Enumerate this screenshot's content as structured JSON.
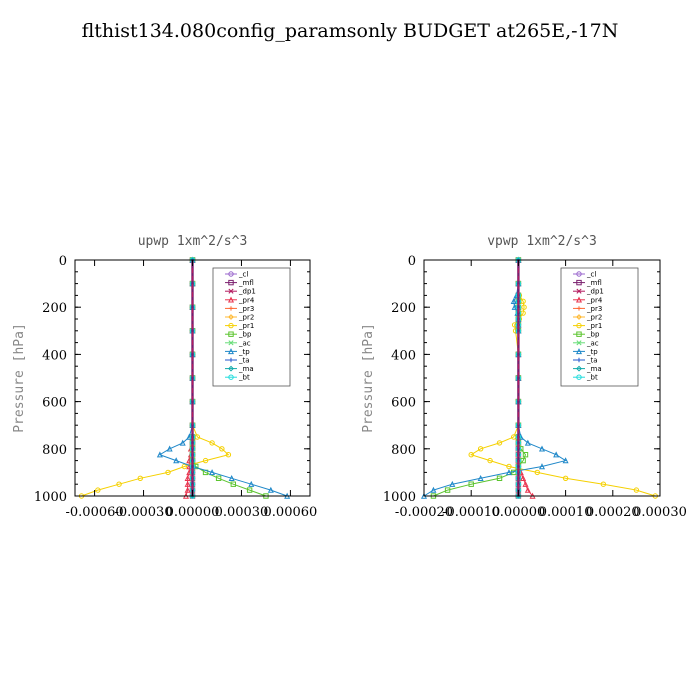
{
  "title": "flthist134.080config_paramsonly  BUDGET at265E,-17N",
  "chart_data": [
    {
      "type": "line",
      "title": "upwp   1xm^2/s^3",
      "ylabel": "Pressure [hPa]",
      "xlim": [
        -0.00072,
        0.00072
      ],
      "ylim": [
        0,
        1000
      ],
      "y_inverted": true,
      "xticks": [
        -0.0006,
        -0.0003,
        0.0,
        0.0003,
        0.0006
      ],
      "xtick_labels": [
        "-0.00060",
        "-0.00030",
        "0.00000",
        "0.00030",
        "0.00060"
      ],
      "yticks": [
        0,
        200,
        400,
        600,
        800,
        1000
      ],
      "y": [
        0,
        100,
        200,
        300,
        400,
        500,
        600,
        700,
        750,
        775,
        800,
        825,
        850,
        875,
        900,
        925,
        950,
        975,
        1000
      ],
      "legend_position": "top-right",
      "series": [
        {
          "name": "_cl",
          "color": "#9966cc",
          "x": [
            0,
            0,
            0,
            0,
            0,
            0,
            0,
            0,
            0,
            0,
            0,
            0,
            0,
            0,
            0,
            0,
            0,
            0,
            0
          ]
        },
        {
          "name": "_mfl",
          "color": "#7a1f6e",
          "x": [
            0,
            0,
            0,
            0,
            0,
            0,
            0,
            0,
            0,
            0,
            0,
            0,
            0,
            0,
            0,
            0,
            0,
            0,
            0
          ]
        },
        {
          "name": "_dp1",
          "color": "#b3195e",
          "x": [
            0,
            0,
            0,
            0,
            0,
            0,
            0,
            0,
            0,
            0,
            0,
            0,
            0,
            0,
            0,
            0,
            0,
            0,
            0
          ]
        },
        {
          "name": "_pr4",
          "color": "#e8344f",
          "x": [
            0,
            0,
            0,
            0,
            0,
            0,
            0,
            0,
            0,
            0,
            -1e-05,
            -1e-05,
            -2e-05,
            -2e-05,
            -2e-05,
            -3e-05,
            -3e-05,
            -3e-05,
            -4e-05
          ]
        },
        {
          "name": "_pr3",
          "color": "#ff6633",
          "x": [
            0,
            0,
            0,
            0,
            0,
            0,
            0,
            0,
            0,
            0,
            0,
            0,
            0,
            0,
            0,
            0,
            0,
            0,
            0
          ]
        },
        {
          "name": "_pr2",
          "color": "#ffb830",
          "x": [
            0,
            0,
            0,
            0,
            0,
            0,
            0,
            0,
            0,
            0,
            0,
            0,
            0,
            0,
            0,
            0,
            0,
            0,
            0
          ]
        },
        {
          "name": "_pr1",
          "color": "#f5d000",
          "x": [
            0,
            0,
            0,
            0,
            0,
            0,
            0,
            0,
            3e-05,
            0.00012,
            0.00018,
            0.00022,
            8e-05,
            -5e-05,
            -0.00015,
            -0.00032,
            -0.00045,
            -0.00058,
            -0.00068
          ]
        },
        {
          "name": "_bp",
          "color": "#5cc42f",
          "x": [
            0,
            0,
            0,
            0,
            0,
            0,
            0,
            0,
            0,
            0,
            0,
            0,
            0,
            2e-05,
            8e-05,
            0.00016,
            0.00025,
            0.00035,
            0.00045
          ]
        },
        {
          "name": "_ac",
          "color": "#66dd77",
          "x": [
            0,
            0,
            0,
            0,
            0,
            0,
            0,
            0,
            0,
            0,
            0,
            0,
            0,
            0,
            0,
            0,
            0,
            0,
            0
          ]
        },
        {
          "name": "_tp",
          "color": "#1f88c9",
          "x": [
            0,
            0,
            0,
            0,
            0,
            0,
            0,
            0,
            -2e-05,
            -6e-05,
            -0.00014,
            -0.0002,
            -0.0001,
            0.0,
            0.00012,
            0.00024,
            0.00036,
            0.00048,
            0.00058
          ]
        },
        {
          "name": "_ta",
          "color": "#2255cc",
          "x": [
            0,
            0,
            0,
            0,
            0,
            0,
            0,
            0,
            0,
            0,
            0,
            0,
            0,
            0,
            0,
            0,
            0,
            0,
            0
          ]
        },
        {
          "name": "_ma",
          "color": "#11aaaa",
          "x": [
            0,
            0,
            0,
            0,
            0,
            0,
            0,
            0,
            0,
            0,
            0,
            0,
            0,
            0,
            0,
            0,
            0,
            0,
            0
          ]
        },
        {
          "name": "_bt",
          "color": "#22dddd",
          "x": [
            0,
            0,
            0,
            0,
            0,
            0,
            0,
            0,
            0,
            0,
            0,
            0,
            0,
            0,
            0,
            0,
            0,
            0,
            0
          ]
        }
      ]
    },
    {
      "type": "line",
      "title": "vpwp   1xm^2/s^3",
      "ylabel": "Pressure [hPa]",
      "xlim": [
        -0.0002,
        0.0003
      ],
      "ylim": [
        0,
        1000
      ],
      "y_inverted": true,
      "xticks": [
        -0.0002,
        -0.0001,
        0.0,
        0.0001,
        0.0002,
        0.0003
      ],
      "xtick_labels": [
        "-0.00020",
        "-0.00010",
        "0.00000",
        "0.00010",
        "0.00020",
        "0.00030"
      ],
      "yticks": [
        0,
        200,
        400,
        600,
        800,
        1000
      ],
      "y": [
        0,
        100,
        150,
        175,
        200,
        225,
        250,
        275,
        300,
        400,
        500,
        600,
        700,
        750,
        775,
        800,
        825,
        850,
        875,
        900,
        925,
        950,
        975,
        1000
      ],
      "legend_position": "top-right",
      "series": [
        {
          "name": "_cl",
          "color": "#9966cc",
          "x": [
            0,
            0,
            0,
            0,
            0,
            0,
            0,
            0,
            0,
            0,
            0,
            0,
            0,
            0,
            0,
            0,
            0,
            0,
            0,
            0,
            0,
            0,
            0,
            0
          ]
        },
        {
          "name": "_mfl",
          "color": "#7a1f6e",
          "x": [
            0,
            0,
            0,
            0,
            0,
            0,
            0,
            0,
            0,
            0,
            0,
            0,
            0,
            0,
            0,
            0,
            0,
            0,
            0,
            0,
            0,
            0,
            0,
            0
          ]
        },
        {
          "name": "_dp1",
          "color": "#b3195e",
          "x": [
            0,
            0,
            0,
            0,
            0,
            0,
            0,
            0,
            0,
            0,
            0,
            0,
            0,
            0,
            0,
            0,
            0,
            0,
            0,
            0,
            0,
            0,
            0,
            0
          ]
        },
        {
          "name": "_pr4",
          "color": "#e8344f",
          "x": [
            0,
            0,
            0,
            0,
            0,
            0,
            0,
            0,
            0,
            0,
            0,
            0,
            0,
            0,
            0,
            0,
            0,
            0,
            0,
            5e-06,
            1e-05,
            1.5e-05,
            2e-05,
            3e-05
          ]
        },
        {
          "name": "_pr3",
          "color": "#ff6633",
          "x": [
            0,
            0,
            0,
            0,
            0,
            0,
            0,
            0,
            0,
            0,
            0,
            0,
            0,
            0,
            0,
            0,
            0,
            0,
            0,
            0,
            0,
            0,
            0,
            0
          ]
        },
        {
          "name": "_pr2",
          "color": "#ffb830",
          "x": [
            0,
            0,
            0,
            0,
            0,
            0,
            0,
            0,
            0,
            0,
            0,
            0,
            0,
            0,
            0,
            0,
            0,
            0,
            0,
            0,
            0,
            0,
            0,
            0
          ]
        },
        {
          "name": "_pr1",
          "color": "#f5d000",
          "x": [
            0,
            0,
            2e-06,
            1e-05,
            1.2e-05,
            1e-05,
            2e-06,
            -8e-06,
            -6e-06,
            0,
            0,
            0,
            0,
            -1e-05,
            -4e-05,
            -8e-05,
            -0.0001,
            -6e-05,
            -2e-05,
            4e-05,
            0.0001,
            0.00018,
            0.00025,
            0.00029
          ]
        },
        {
          "name": "_bp",
          "color": "#5cc42f",
          "x": [
            0,
            0,
            0,
            0,
            0,
            0,
            0,
            0,
            0,
            0,
            0,
            0,
            0,
            0,
            0,
            5e-06,
            1.5e-05,
            1e-05,
            0,
            -1e-05,
            -4e-05,
            -0.0001,
            -0.00015,
            -0.00018
          ]
        },
        {
          "name": "_ac",
          "color": "#66dd77",
          "x": [
            0,
            0,
            0,
            0,
            0,
            0,
            0,
            0,
            0,
            0,
            0,
            0,
            0,
            0,
            0,
            0,
            0,
            0,
            0,
            0,
            0,
            0,
            0,
            0
          ]
        },
        {
          "name": "_tp",
          "color": "#1f88c9",
          "x": [
            0,
            0,
            -4e-06,
            -1e-05,
            -8e-06,
            -2e-06,
            0,
            0,
            0,
            0,
            0,
            0,
            0,
            5e-06,
            2e-05,
            5e-05,
            8e-05,
            0.0001,
            5e-05,
            -2e-05,
            -8e-05,
            -0.00014,
            -0.00018,
            -0.0002
          ]
        },
        {
          "name": "_ta",
          "color": "#2255cc",
          "x": [
            0,
            0,
            0,
            0,
            0,
            0,
            0,
            0,
            0,
            0,
            0,
            0,
            0,
            0,
            0,
            0,
            0,
            0,
            0,
            0,
            0,
            0,
            0,
            0
          ]
        },
        {
          "name": "_ma",
          "color": "#11aaaa",
          "x": [
            0,
            0,
            0,
            0,
            0,
            0,
            0,
            0,
            0,
            0,
            0,
            0,
            0,
            0,
            0,
            0,
            0,
            0,
            0,
            0,
            0,
            0,
            0,
            0
          ]
        },
        {
          "name": "_bt",
          "color": "#22dddd",
          "x": [
            0,
            0,
            0,
            0,
            0,
            0,
            0,
            0,
            0,
            0,
            0,
            0,
            0,
            0,
            0,
            0,
            0,
            0,
            0,
            0,
            0,
            0,
            0,
            0
          ]
        }
      ]
    }
  ]
}
